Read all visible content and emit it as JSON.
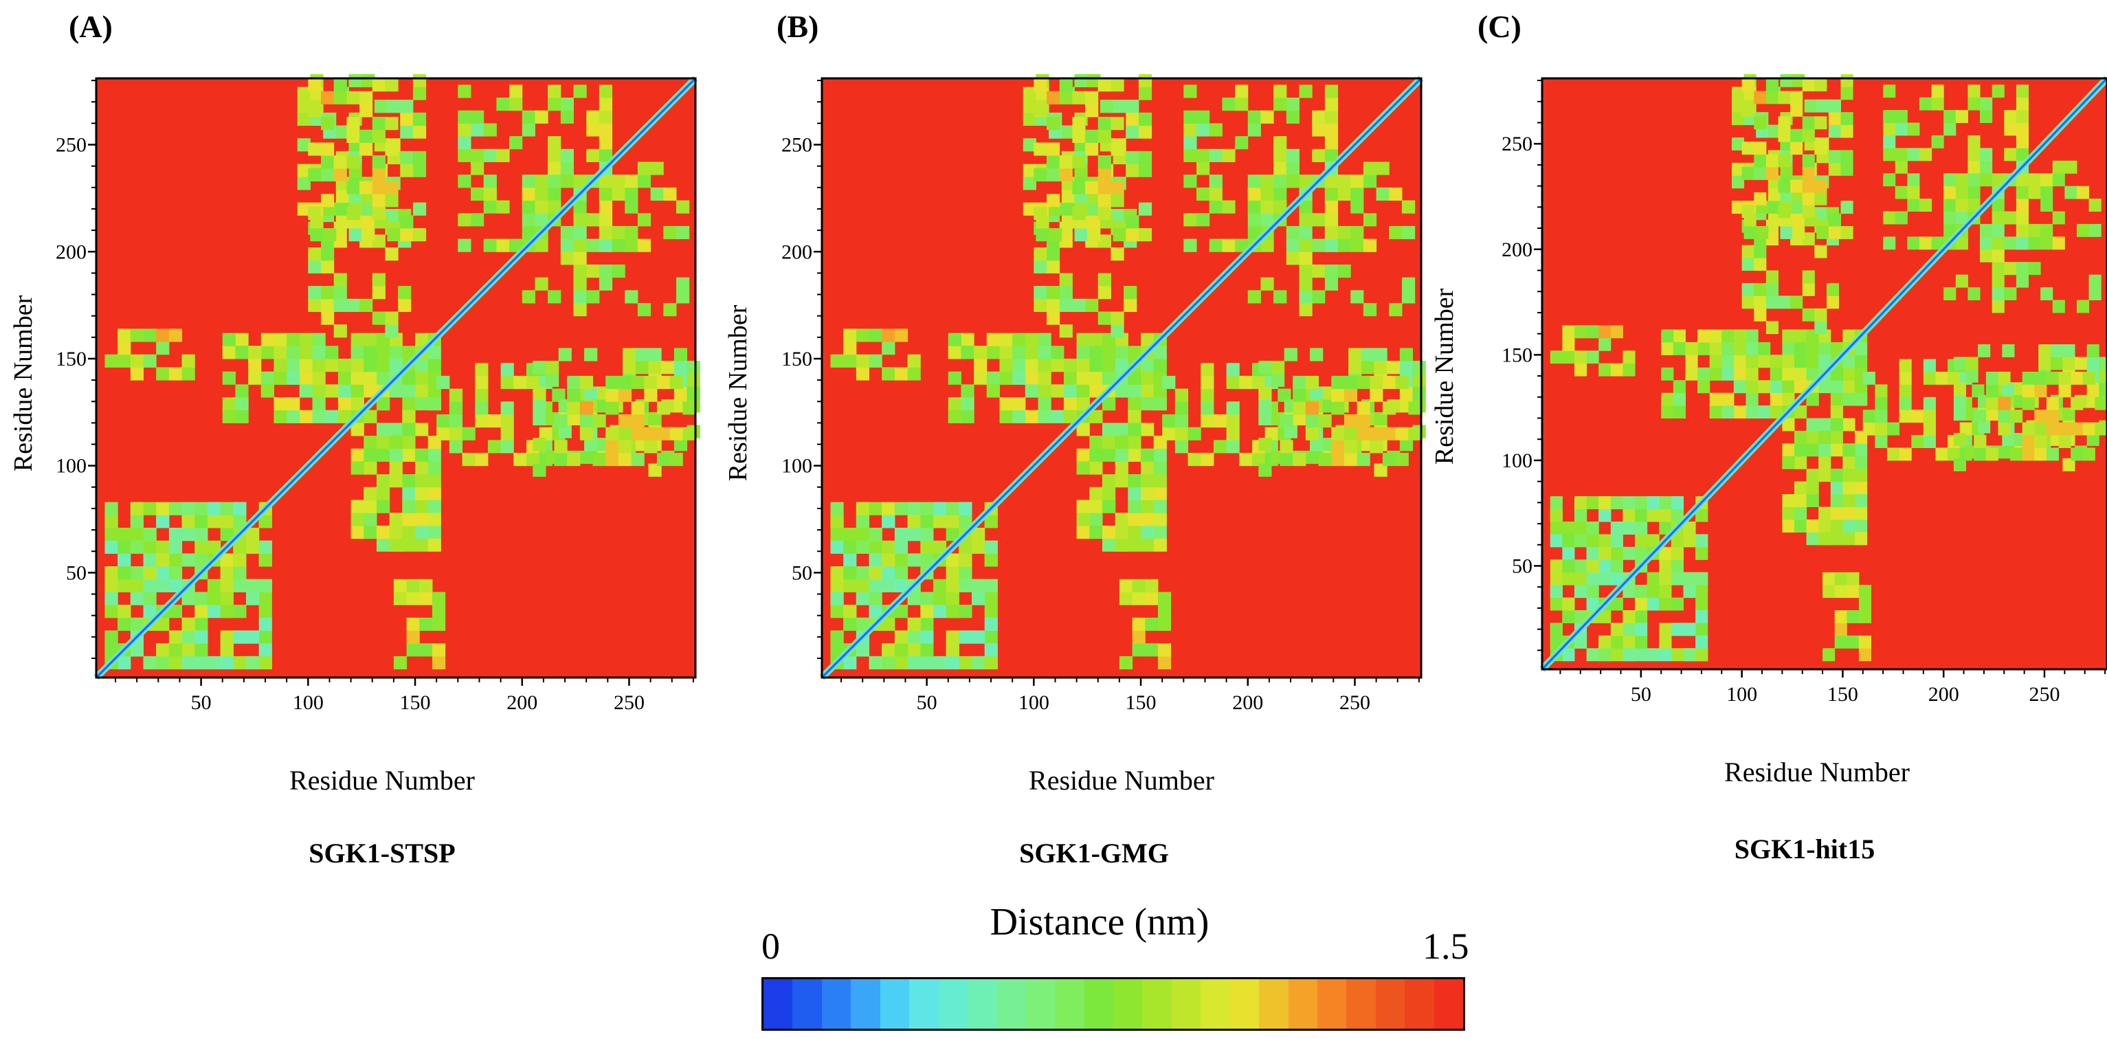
{
  "chart_data": [
    {
      "type": "heatmap",
      "panel_label": "(A)",
      "title": "SGK1-STSP",
      "xlabel": "Residue Number",
      "ylabel": "Residue Number",
      "xlim": [
        1,
        281
      ],
      "ylim": [
        1,
        281
      ],
      "x_ticks": [
        50,
        100,
        150,
        200,
        250
      ],
      "y_ticks": [
        50,
        100,
        150,
        200,
        250
      ],
      "value_range_nm": [
        0,
        1.5
      ],
      "contact_regions": [
        {
          "x": [
            5,
            80
          ],
          "y": [
            5,
            80
          ],
          "value": 0.7
        },
        {
          "x": [
            60,
            160
          ],
          "y": [
            120,
            160
          ],
          "value": 0.8
        },
        {
          "x": [
            120,
            160
          ],
          "y": [
            60,
            120
          ],
          "value": 0.8
        },
        {
          "x": [
            170,
            240
          ],
          "y": [
            200,
            275
          ],
          "value": 0.8
        },
        {
          "x": [
            100,
            145
          ],
          "y": [
            160,
            215
          ],
          "value": 0.8
        },
        {
          "x": [
            205,
            280
          ],
          "y": [
            95,
            150
          ],
          "value": 0.8
        },
        {
          "x": [
            100,
            140
          ],
          "y": [
            215,
            280
          ],
          "value": 0.9
        },
        {
          "x": [
            140,
            160
          ],
          "y": [
            5,
            45
          ],
          "value": 0.9
        }
      ]
    },
    {
      "type": "heatmap",
      "panel_label": "(B)",
      "title": "SGK1-GMG",
      "xlabel": "Residue Number",
      "ylabel": "Residue Number",
      "xlim": [
        1,
        281
      ],
      "ylim": [
        1,
        281
      ],
      "x_ticks": [
        50,
        100,
        150,
        200,
        250
      ],
      "y_ticks": [
        50,
        100,
        150,
        200,
        250
      ],
      "value_range_nm": [
        0,
        1.5
      ],
      "contact_regions": [
        {
          "x": [
            5,
            80
          ],
          "y": [
            5,
            80
          ],
          "value": 0.7
        },
        {
          "x": [
            60,
            160
          ],
          "y": [
            120,
            160
          ],
          "value": 0.8
        },
        {
          "x": [
            120,
            160
          ],
          "y": [
            60,
            120
          ],
          "value": 0.8
        },
        {
          "x": [
            170,
            240
          ],
          "y": [
            200,
            275
          ],
          "value": 0.8
        },
        {
          "x": [
            100,
            145
          ],
          "y": [
            160,
            215
          ],
          "value": 0.8
        },
        {
          "x": [
            205,
            280
          ],
          "y": [
            95,
            150
          ],
          "value": 0.8
        },
        {
          "x": [
            100,
            140
          ],
          "y": [
            215,
            280
          ],
          "value": 0.9
        },
        {
          "x": [
            140,
            160
          ],
          "y": [
            5,
            45
          ],
          "value": 0.9
        }
      ]
    },
    {
      "type": "heatmap",
      "panel_label": "(C)",
      "title": "SGK1-hit15",
      "xlabel": "Residue Number",
      "ylabel": "Residue Number",
      "xlim": [
        1,
        281
      ],
      "ylim": [
        1,
        281
      ],
      "x_ticks": [
        50,
        100,
        150,
        200,
        250
      ],
      "y_ticks": [
        50,
        100,
        150,
        200,
        250
      ],
      "value_range_nm": [
        0,
        1.5
      ],
      "contact_regions": [
        {
          "x": [
            5,
            80
          ],
          "y": [
            5,
            80
          ],
          "value": 0.7
        },
        {
          "x": [
            60,
            160
          ],
          "y": [
            120,
            160
          ],
          "value": 0.8
        },
        {
          "x": [
            120,
            160
          ],
          "y": [
            60,
            120
          ],
          "value": 0.8
        },
        {
          "x": [
            170,
            240
          ],
          "y": [
            200,
            275
          ],
          "value": 0.8
        },
        {
          "x": [
            100,
            145
          ],
          "y": [
            160,
            215
          ],
          "value": 0.8
        },
        {
          "x": [
            205,
            280
          ],
          "y": [
            95,
            150
          ],
          "value": 0.8
        },
        {
          "x": [
            100,
            140
          ],
          "y": [
            215,
            280
          ],
          "value": 0.9
        },
        {
          "x": [
            140,
            160
          ],
          "y": [
            5,
            45
          ],
          "value": 0.9
        }
      ]
    }
  ],
  "colorbar": {
    "title": "Distance (nm)",
    "min_label": "0",
    "max_label": "1.5",
    "colors": [
      "#1a3ee8",
      "#1f5cf0",
      "#2b7ff5",
      "#3aa6f7",
      "#4ccff5",
      "#5ee6e6",
      "#66ecd0",
      "#6ef0b5",
      "#77f095",
      "#7df07a",
      "#80ed5c",
      "#7ce83c",
      "#8ee62e",
      "#a7e62b",
      "#c0e62b",
      "#d7e82e",
      "#e8e12e",
      "#efc22b",
      "#f4a228",
      "#f48424",
      "#f06a20",
      "#ee551e",
      "#ee421c",
      "#f0301c"
    ]
  }
}
